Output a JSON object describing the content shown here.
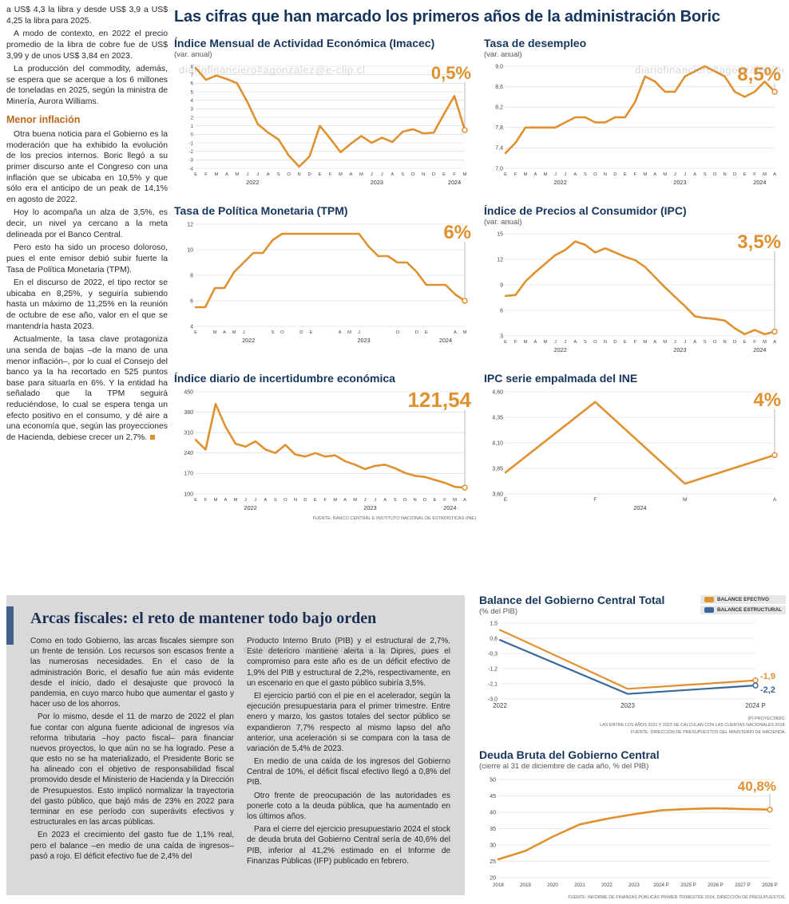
{
  "watermark": {
    "text": "diariofinanciero#agonzalez@e-clip.cl"
  },
  "headline": "Las cifras que han marcado los primeros años de la administración Boric",
  "left_column": {
    "intro_paragraphs": [
      "a US$ 4,3 la libra y desde US$ 3,9 a US$ 4,25 la libra para 2025.",
      "A modo de contexto, en 2022 el precio promedio de la libra de cobre fue de US$ 3,99 y de unos US$ 3,84 en 2023.",
      "La producción del commodity, además, se espera que se acerque a los 6 millones de toneladas en 2025, según la ministra de Minería, Aurora Williams."
    ],
    "subhead": "Menor inflación",
    "body_paragraphs": [
      "Otra buena noticia para el Gobierno es la moderación que ha exhibido la evolución de los precios internos. Boric llegó a su primer discurso ante el Congreso con una inflación que se ubicaba en 10,5% y que sólo era el anticipo de un peak de 14,1% en agosto de 2022.",
      "Hoy lo acompaña un alza de 3,5%, es decir, un nivel ya cercano a la meta delineada por el Banco Central.",
      "Pero esto ha sido un proceso doloroso, pues el ente emisor debió subir fuerte la Tasa de Política Monetaria (TPM).",
      "En el discurso de 2022, el tipo rector se ubicaba en 8,25%, y seguiría subiendo hasta un máximo de 11,25% en la reunión de octubre de ese año, valor en el que se mantendría hasta 2023.",
      "Actualmente, la tasa clave protagoniza una senda de bajas –de la mano de una menor inflación–, por lo cual el Consejo del banco ya la ha recortado en 525 puntos base para situarla en 6%. Y la entidad ha señalado que la TPM seguirá reduciéndose, lo cual se espera tenga un efecto positivo en el consumo, y dé aire a una economía que, según las proyecciones de Hacienda, debiese crecer un 2,7%."
    ]
  },
  "source_note": "FUENTE: BANCO CENTRAL E INSTITUTO NACIONAL DE ESTADÍSTICAS (INE)",
  "fiscal": {
    "title": "Arcas fiscales: el reto de mantener todo bajo orden",
    "col1": [
      "Como en todo Gobierno, las arcas fiscales siempre son un frente de tensión. Los recursos son escasos frente a las numerosas necesidades. En el caso de la administración Boric, el desafío fue aún más evidente desde el inicio, dado el desajuste que provocó la pandemia, en cuyo marco hubo que aumentar el gasto y hacer uso de los ahorros.",
      "Por lo mismo, desde el 11 de marzo de 2022 el plan fue contar con alguna fuente adicional de ingresos vía reforma tributaria –hoy pacto fiscal– para financiar nuevos proyectos, lo que aún no se ha logrado. Pese a que esto no se ha materializado, el Presidente Boric se ha alineado con el objetivo de responsabilidad fiscal promovido desde el Ministerio de Hacienda y la Dirección de Presupuestos. Esto implicó normalizar la trayectoria del gasto público, que bajó más de 23% en 2022 para terminar en ese período con superávits efectivos y estructurales en las arcas públicas.",
      "En 2023 el crecimiento del gasto fue de 1,1% real, pero el balance –en medio de una caída de ingresos– pasó a rojo. El déficit efectivo fue de 2,4% del"
    ],
    "col2": [
      "Producto Interno Bruto (PIB) y el estructural de 2,7%. Este deterioro mantiene alerta a la Dipres, pues el compromiso para este año es de un déficit efectivo de 1,9% del PIB y estructural de 2,2%, respectivamente, en un escenario en que el gasto público subiría 3,5%.",
      "El ejercicio partió con el pie en el acelerador, según la ejecución presupuestaria para el primer trimestre. Entre enero y marzo, los gastos totales del sector público se expandieron 7,7% respecto al mismo lapso del año anterior, una aceleración si se compara con la tasa de variación de 5,4% de 2023.",
      "En medio de una caída de los ingresos del Gobierno Central de 10%, el déficit fiscal efectivo llegó a 0,8% del PIB.",
      "Otro frente de preocupación de las autoridades es ponerle coto a la deuda pública, que ha aumentado en los últimos años.",
      "Para el cierre del ejercicio presupuestario 2024 el stock de deuda bruta del Gobierno Central sería de 40,6% del PIB, inferior al 41,2% estimado en el Informe de Finanzas Públicas (IFP) publicado en febrero."
    ]
  },
  "colors": {
    "accent_orange": "#E0912F",
    "accent_blue": "#39689B",
    "navy": "#17365E"
  },
  "chart_data": [
    {
      "type": "line",
      "title": "Índice Mensual de Actividad Económica (Imacec)",
      "subtitle": "(var. anual)",
      "highlight": "0,5%",
      "highlight_size": 22,
      "highlight_dy": 16,
      "ylim": [
        -4,
        8
      ],
      "ticks": [
        8,
        7,
        6,
        5,
        4,
        3,
        2,
        1,
        0,
        -1,
        -2,
        -3,
        -4
      ],
      "tick_size": 6,
      "x_labels": [
        "E",
        "F",
        "M",
        "A",
        "M",
        "J",
        "J",
        "A",
        "S",
        "O",
        "N",
        "D",
        "E",
        "F",
        "M",
        "A",
        "M",
        "J",
        "J",
        "A",
        "S",
        "O",
        "N",
        "D",
        "E",
        "F",
        "M"
      ],
      "years": [
        {
          "label": "2022",
          "from": 0,
          "to": 11
        },
        {
          "label": "2023",
          "from": 12,
          "to": 23
        },
        {
          "label": "2024",
          "from": 24,
          "to": 26
        }
      ],
      "series": [
        {
          "name": "Imacec",
          "color": "#E0912F",
          "values": [
            7.8,
            6.4,
            6.9,
            6.5,
            6.0,
            3.8,
            1.2,
            0.2,
            -0.6,
            -2.5,
            -3.8,
            -2.6,
            1.0,
            -0.5,
            -2.1,
            -1.1,
            -0.2,
            -1.0,
            -0.4,
            -0.9,
            0.3,
            0.6,
            0.1,
            0.2,
            2.4,
            4.5,
            0.5
          ]
        }
      ]
    },
    {
      "type": "line",
      "title": "Tasa de desempleo",
      "subtitle": "(var. anual)",
      "highlight": "8,5%",
      "highlight_size": 24,
      "highlight_dy": 18,
      "ylim": [
        7.0,
        9.0
      ],
      "ticks": [
        9.0,
        8.6,
        8.2,
        7.8,
        7.4,
        7.0
      ],
      "tick_labels": [
        "9,0",
        "8,6",
        "8,2",
        "7,8",
        "7,4",
        "7,0"
      ],
      "x_labels": [
        "E",
        "F",
        "M",
        "A",
        "M",
        "J",
        "J",
        "A",
        "S",
        "O",
        "N",
        "D",
        "E",
        "F",
        "M",
        "A",
        "M",
        "J",
        "J",
        "A",
        "S",
        "O",
        "N",
        "D",
        "E",
        "F",
        "M",
        "A"
      ],
      "years": [
        {
          "label": "2022",
          "from": 0,
          "to": 11
        },
        {
          "label": "2023",
          "from": 12,
          "to": 23
        },
        {
          "label": "2024",
          "from": 24,
          "to": 27
        }
      ],
      "series": [
        {
          "name": "Desempleo",
          "color": "#E0912F",
          "values": [
            7.3,
            7.5,
            7.8,
            7.8,
            7.8,
            7.8,
            7.9,
            8.0,
            8.0,
            7.9,
            7.9,
            8.0,
            8.0,
            8.3,
            8.8,
            8.7,
            8.5,
            8.5,
            8.8,
            8.9,
            9.0,
            8.9,
            8.8,
            8.5,
            8.4,
            8.5,
            8.7,
            8.5
          ]
        }
      ]
    },
    {
      "type": "line",
      "title": "Tasa de Política Monetaria (TPM)",
      "subtitle": "",
      "highlight": "6%",
      "highlight_size": 24,
      "highlight_dy": 18,
      "ylim": [
        4,
        12
      ],
      "ticks": [
        12,
        10,
        8,
        6,
        4
      ],
      "x_labels": [
        "E",
        "",
        "M",
        "A",
        "M",
        "J",
        "",
        "",
        "S",
        "O",
        "",
        "D",
        "E",
        "",
        "",
        "A",
        "M",
        "J",
        "",
        "",
        "",
        "O",
        "",
        "D",
        "E",
        "",
        "",
        "A",
        "M"
      ],
      "years": [
        {
          "label": "2022",
          "from": 0,
          "to": 11
        },
        {
          "label": "2023",
          "from": 12,
          "to": 23
        },
        {
          "label": "2024",
          "from": 24,
          "to": 28
        }
      ],
      "series": [
        {
          "name": "TPM",
          "color": "#E0912F",
          "values": [
            5.5,
            5.5,
            7.0,
            7.0,
            8.25,
            9.0,
            9.75,
            9.75,
            10.75,
            11.25,
            11.25,
            11.25,
            11.25,
            11.25,
            11.25,
            11.25,
            11.25,
            11.25,
            10.25,
            9.5,
            9.5,
            9.0,
            9.0,
            8.25,
            7.25,
            7.25,
            7.25,
            6.5,
            6.0
          ]
        }
      ]
    },
    {
      "type": "line",
      "title": "Índice de Precios al Consumidor (IPC)",
      "subtitle": "(var. anual)",
      "highlight": "3,5%",
      "highlight_size": 24,
      "highlight_dy": 18,
      "ylim": [
        3,
        15
      ],
      "ticks": [
        15,
        12,
        9,
        6,
        3
      ],
      "x_labels": [
        "E",
        "F",
        "M",
        "A",
        "M",
        "J",
        "J",
        "A",
        "S",
        "O",
        "N",
        "D",
        "E",
        "F",
        "M",
        "A",
        "M",
        "J",
        "J",
        "A",
        "S",
        "O",
        "N",
        "D",
        "E",
        "F",
        "M",
        "A"
      ],
      "years": [
        {
          "label": "2022",
          "from": 0,
          "to": 11
        },
        {
          "label": "2023",
          "from": 12,
          "to": 23
        },
        {
          "label": "2024",
          "from": 24,
          "to": 27
        }
      ],
      "series": [
        {
          "name": "IPC",
          "color": "#E0912F",
          "values": [
            7.7,
            7.8,
            9.4,
            10.5,
            11.5,
            12.5,
            13.1,
            14.1,
            13.7,
            12.8,
            13.3,
            12.8,
            12.3,
            11.9,
            11.1,
            9.9,
            8.7,
            7.6,
            6.5,
            5.3,
            5.1,
            5.0,
            4.8,
            3.9,
            3.2,
            3.7,
            3.2,
            3.5
          ]
        }
      ]
    },
    {
      "type": "line",
      "title": "Índice diario de incertidumbre económica",
      "subtitle": "",
      "highlight": "121,54",
      "highlight_size": 26,
      "highlight_dy": 19,
      "ylim": [
        100,
        450
      ],
      "ticks": [
        450,
        380,
        310,
        240,
        170,
        100
      ],
      "x_labels": [
        "E",
        "F",
        "M",
        "A",
        "M",
        "J",
        "J",
        "A",
        "S",
        "O",
        "N",
        "D",
        "E",
        "F",
        "M",
        "A",
        "M",
        "J",
        "J",
        "A",
        "S",
        "O",
        "N",
        "D",
        "E",
        "F",
        "M",
        "A"
      ],
      "years": [
        {
          "label": "2022",
          "from": 0,
          "to": 11
        },
        {
          "label": "2023",
          "from": 12,
          "to": 23
        },
        {
          "label": "2024",
          "from": 24,
          "to": 27
        }
      ],
      "series": [
        {
          "name": "Incertidumbre",
          "color": "#E0912F",
          "values": [
            285,
            252,
            408,
            330,
            272,
            262,
            280,
            252,
            240,
            268,
            235,
            228,
            240,
            228,
            232,
            212,
            200,
            185,
            196,
            200,
            188,
            172,
            162,
            158,
            148,
            138,
            124,
            121.54
          ]
        }
      ]
    },
    {
      "type": "line",
      "title": "IPC serie empalmada del INE",
      "subtitle": "",
      "highlight": "4%",
      "highlight_size": 24,
      "highlight_dy": 18,
      "ylim": [
        3.6,
        4.6
      ],
      "ticks": [
        4.6,
        4.35,
        4.1,
        3.85,
        3.6
      ],
      "tick_labels": [
        "4,60",
        "4,35",
        "4,10",
        "3,85",
        "3,60"
      ],
      "x_labels": [
        "E",
        "F",
        "M",
        "A"
      ],
      "x_label_size": 6.5,
      "years": [
        {
          "label": "2024",
          "from": 0,
          "to": 3
        }
      ],
      "series": [
        {
          "name": "IPC empalmado",
          "color": "#E0912F",
          "values": [
            3.81,
            4.5,
            3.7,
            3.98
          ]
        }
      ]
    },
    {
      "type": "line",
      "title": "Balance del Gobierno Central Total",
      "subtitle": "(% del PIB)",
      "legend": [
        "BALANCE EFECTIVO",
        "BALANCE ESTRUCTURAL"
      ],
      "ylim": [
        -3.0,
        1.5
      ],
      "ticks": [
        1.5,
        0.6,
        -0.3,
        -1.2,
        -2.1,
        -3.0
      ],
      "tick_labels": [
        "1,5",
        "0,6",
        "-0,3",
        "-1,2",
        "-2,1",
        "-3,0"
      ],
      "x_labels": [
        "2022",
        "2023",
        "2024 P"
      ],
      "x_label_size": 8,
      "margins": {
        "l": 26,
        "r": 36,
        "t": 8,
        "b": 15
      },
      "series": [
        {
          "name": "Balance efectivo",
          "color": "#E0912F",
          "width": 2.2,
          "values": [
            1.1,
            -2.4,
            -1.9
          ],
          "end_label": "-1,9",
          "end_label_dy": -2
        },
        {
          "name": "Balance estructural",
          "color": "#39689B",
          "width": 2.2,
          "values": [
            0.5,
            -2.7,
            -2.2
          ],
          "end_label": "-2,2",
          "end_label_dy": 9
        }
      ],
      "footnotes": [
        "(P) PROYECTADO.",
        "LAS ENTRE LOS AÑOS 2021 Y 2023 SE CALCULAN CON LAS CUENTAS NACIONALES 2018.",
        "FUENTE: DIRECCIÓN DE PRESUPUESTOS DEL MINISTERIO DE HACIENDA."
      ]
    },
    {
      "type": "line",
      "title": "Deuda Bruta del Gobierno Central",
      "subtitle": "(cierre al 31 de diciembre de cada año, % del PIB)",
      "highlight": "40,8%",
      "highlight_size": 17,
      "highlight_dy": 14,
      "ylim": [
        20,
        50
      ],
      "ticks": [
        50,
        45,
        40,
        35,
        30,
        25,
        20
      ],
      "x_labels": [
        "2018",
        "2019",
        "2020",
        "2021",
        "2022",
        "2023",
        "2024 P",
        "2025 P",
        "2026 P",
        "2027 P",
        "2028 P"
      ],
      "x_label_size": 6.2,
      "margins": {
        "l": 24,
        "r": 18,
        "t": 10,
        "b": 15
      },
      "series": [
        {
          "name": "Deuda bruta",
          "color": "#E0912F",
          "values": [
            25.6,
            28.2,
            32.5,
            36.3,
            38.0,
            39.4,
            40.6,
            41.0,
            41.2,
            41.0,
            40.8
          ]
        }
      ],
      "footnote": "FUENTE: INFORME DE FINANZAS PÚBLICAS PRIMER TRIMESTRE 2024, DIRECCIÓN DE PRESUPUESTOS."
    }
  ]
}
